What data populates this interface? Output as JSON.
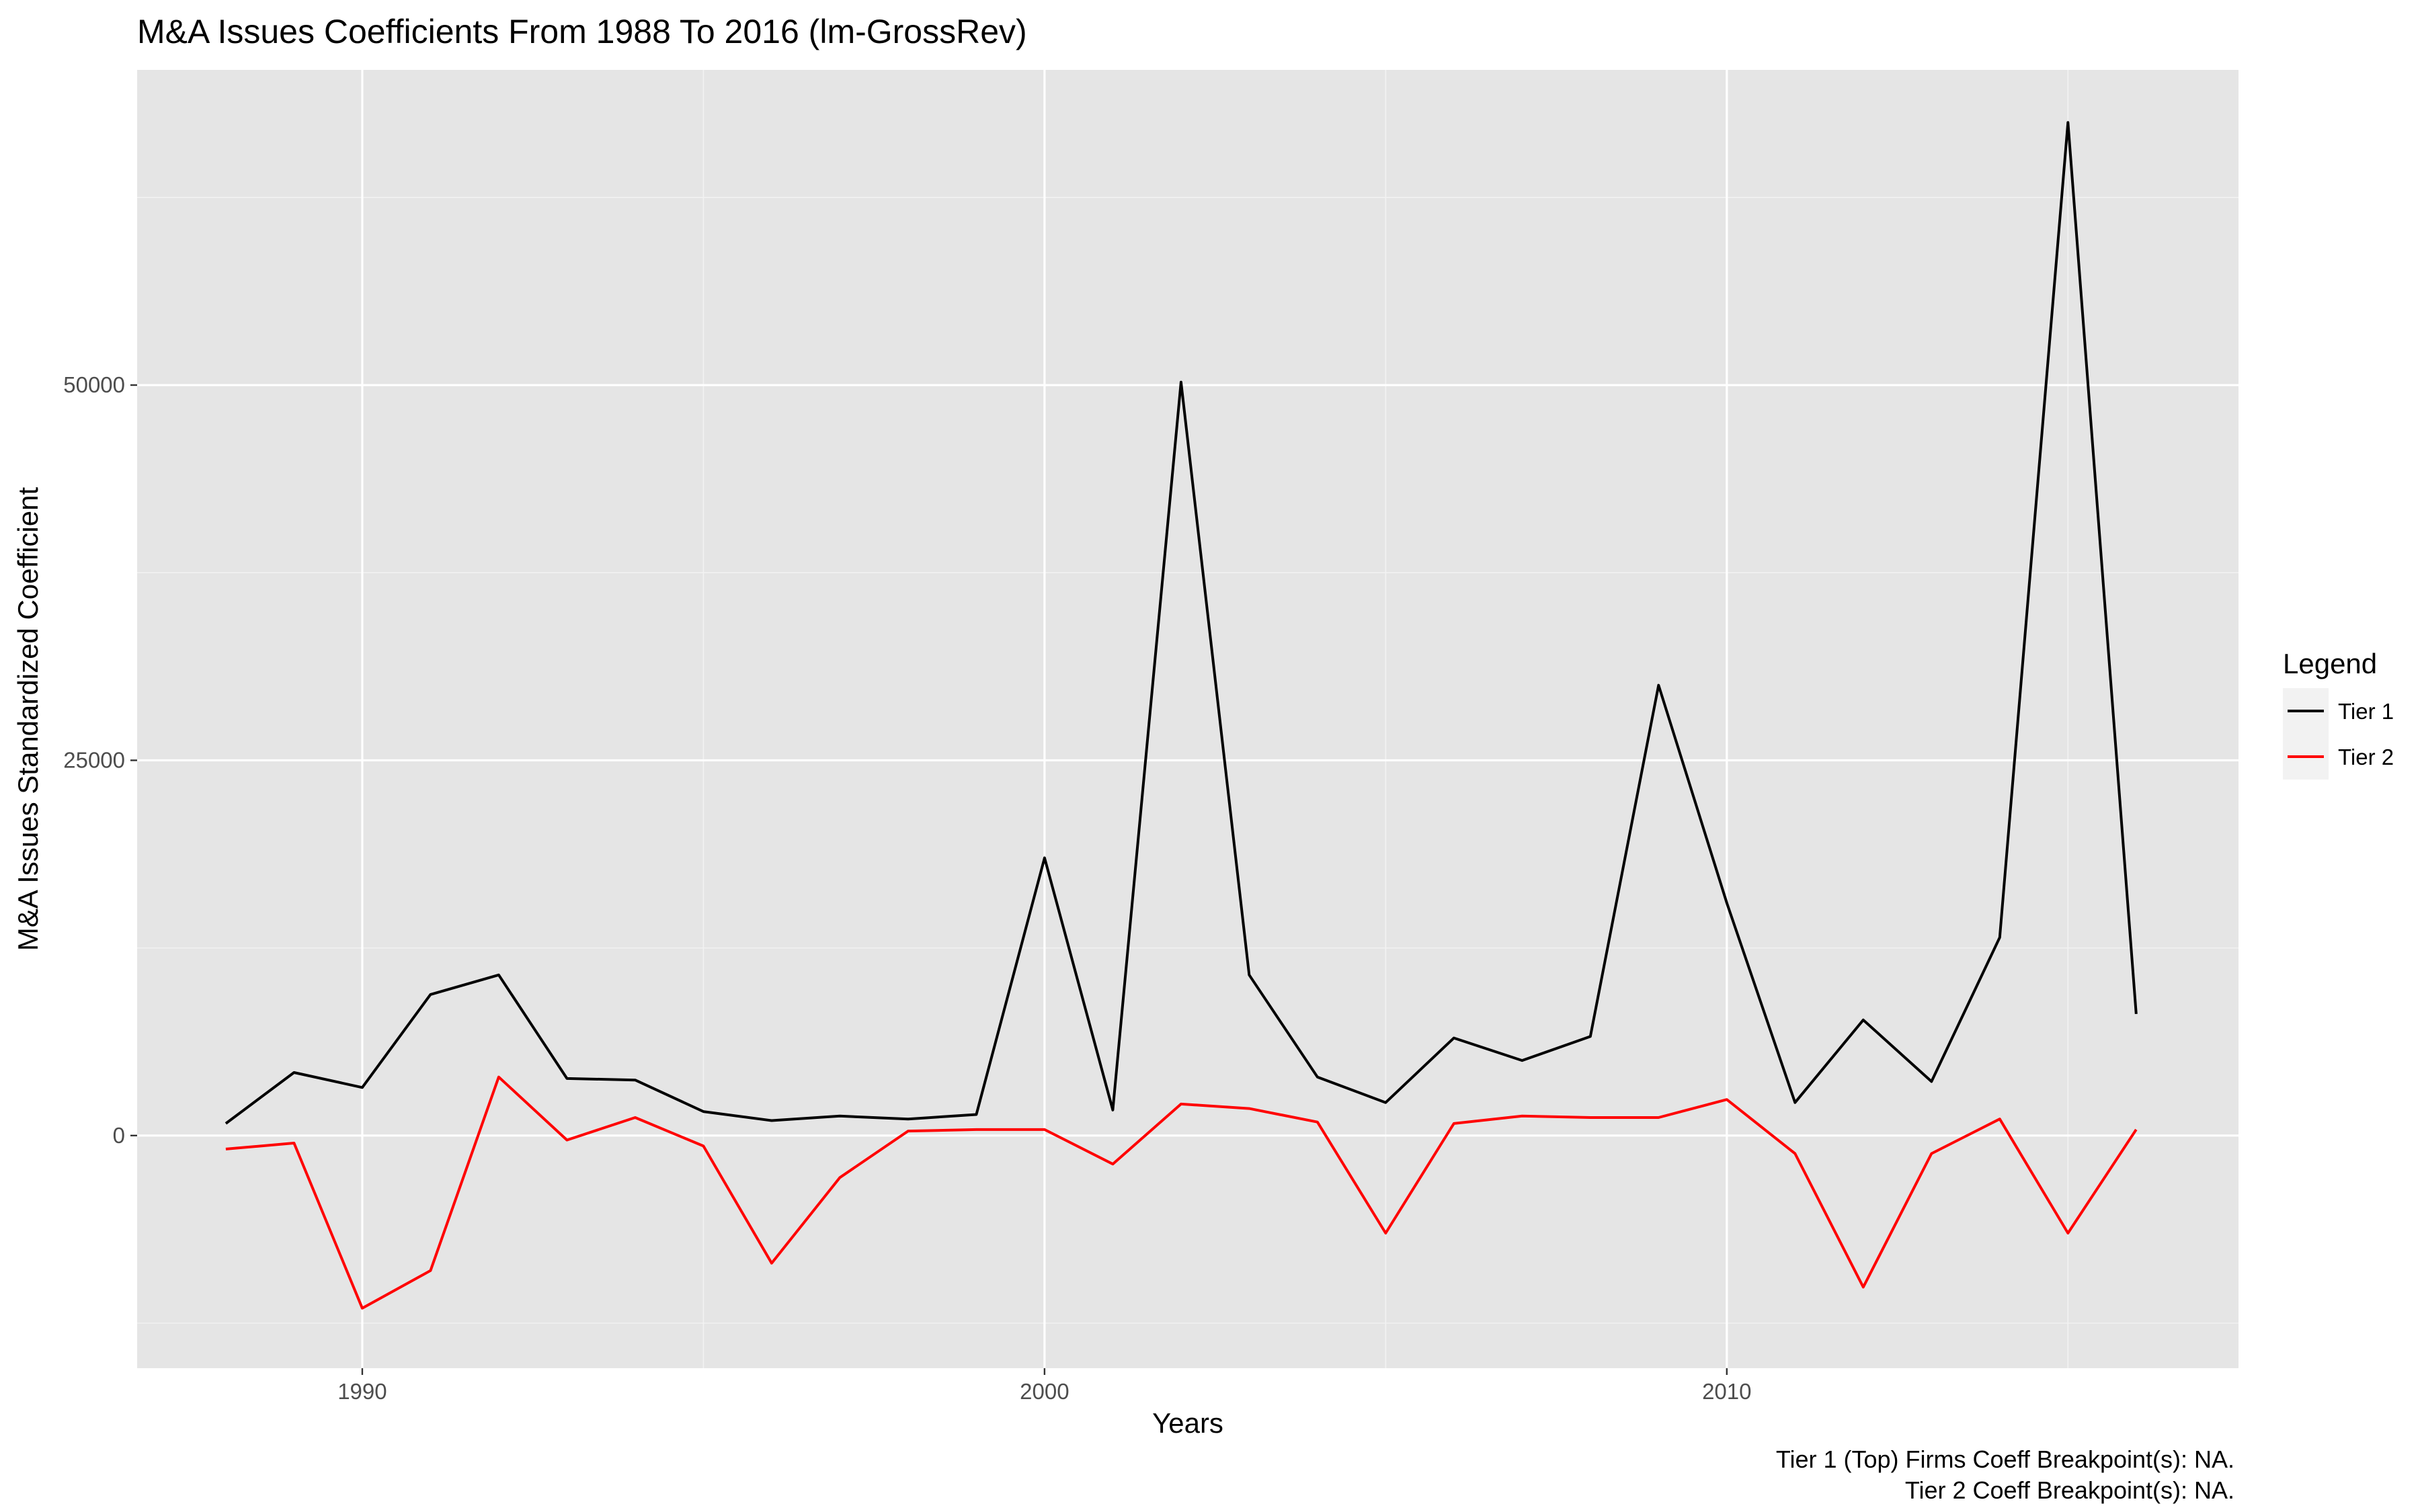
{
  "chart_data": {
    "type": "line",
    "title": "M&A Issues Coefficients From 1988 To 2016 (lm-GrossRev)",
    "xlabel": "Years",
    "ylabel": "M&A Issues Standardized Coefficient",
    "xlim": [
      1986.7,
      2017.5
    ],
    "ylim": [
      -15500,
      71000
    ],
    "x_ticks": [
      1990,
      2000,
      2010
    ],
    "y_ticks": [
      0,
      25000,
      50000
    ],
    "grid": true,
    "legend": {
      "title": "Legend",
      "position": "right"
    },
    "captions": [
      "Tier 1 (Top) Firms Coeff Breakpoint(s): NA.",
      "Tier 2 Coeff Breakpoint(s): NA."
    ],
    "x": [
      1988,
      1989,
      1990,
      1991,
      1992,
      1993,
      1994,
      1995,
      1996,
      1997,
      1998,
      1999,
      2000,
      2001,
      2002,
      2003,
      2004,
      2005,
      2006,
      2007,
      2008,
      2009,
      2010,
      2011,
      2012,
      2013,
      2014,
      2015,
      2016
    ],
    "series": [
      {
        "name": "Tier 1",
        "color": "#000000",
        "values": [
          800,
          4200,
          3200,
          9400,
          10700,
          3800,
          3700,
          1600,
          1000,
          1300,
          1100,
          1400,
          18500,
          1700,
          50200,
          10700,
          3900,
          2200,
          6500,
          5000,
          6600,
          30000,
          15500,
          2200,
          7700,
          3600,
          13200,
          67500,
          8100
        ]
      },
      {
        "name": "Tier 2",
        "color": "#ff0000",
        "values": [
          -900,
          -500,
          -11500,
          -9000,
          3900,
          -300,
          1200,
          -700,
          -8500,
          -2800,
          300,
          400,
          400,
          -1900,
          2100,
          1800,
          900,
          -6500,
          800,
          1300,
          1200,
          1200,
          2400,
          -1200,
          -10100,
          -1200,
          1100,
          -6500,
          400
        ]
      }
    ]
  }
}
